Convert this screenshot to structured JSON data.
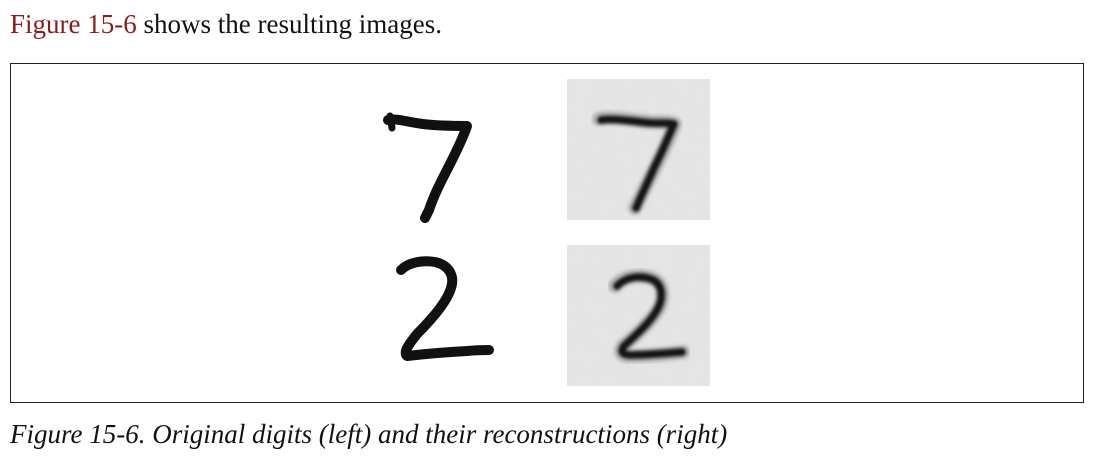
{
  "intro": {
    "figure_ref": "Figure 15-6",
    "text": " shows the resulting images."
  },
  "figure": {
    "rows": [
      {
        "digit": "7"
      },
      {
        "digit": "2"
      }
    ],
    "colors": {
      "reference_link": "#8b1a1a",
      "reconstruction_bg": "#e6e6e6",
      "stroke": "#111111"
    }
  },
  "caption": {
    "text": "Figure 15-6. Original digits (left) and their reconstructions (right)"
  }
}
